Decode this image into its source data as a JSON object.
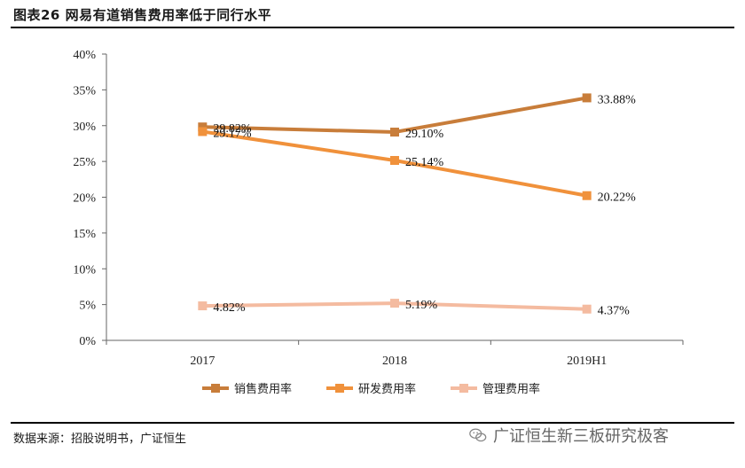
{
  "header": {
    "title": "图表26 网易有道销售费用率低于同行水平"
  },
  "footer": {
    "source": "数据来源：招股说明书，广证恒生",
    "watermark": "广证恒生新三板研究极客"
  },
  "chart_data": {
    "type": "line",
    "x": [
      "2017",
      "2018",
      "2019H1"
    ],
    "ylim": [
      0,
      40
    ],
    "yticks": [
      "0%",
      "5%",
      "10%",
      "15%",
      "20%",
      "25%",
      "30%",
      "35%",
      "40%"
    ],
    "grid": false,
    "legend_position": "bottom",
    "series": [
      {
        "name": "销售费用率",
        "values": [
          29.82,
          29.1,
          33.88
        ],
        "labels": [
          "29.82%",
          "29.10%",
          "33.88%"
        ],
        "color": "#C87D3A"
      },
      {
        "name": "研发费用率",
        "values": [
          29.17,
          25.14,
          20.22
        ],
        "labels": [
          "29.17%",
          "25.14%",
          "20.22%"
        ],
        "color": "#F0913B"
      },
      {
        "name": "管理费用率",
        "values": [
          4.82,
          5.19,
          4.37
        ],
        "labels": [
          "4.82%",
          "5.19%",
          "4.37%"
        ],
        "color": "#F4BBA0"
      }
    ]
  }
}
